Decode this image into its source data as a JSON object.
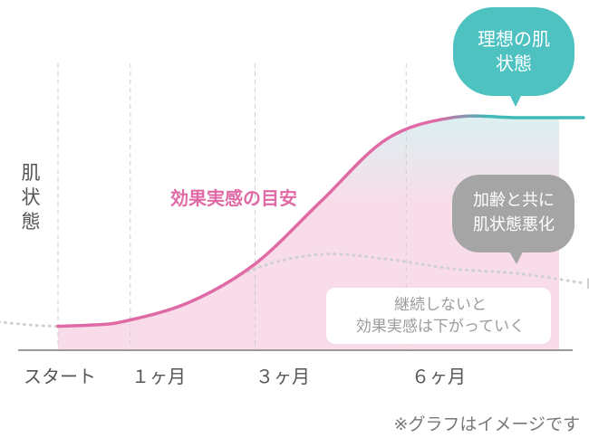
{
  "chart_data": {
    "type": "area",
    "ylabel": "肌\n状\n態",
    "categories": [
      "スタート",
      "1ヶ月",
      "3ヶ月",
      "6ヶ月"
    ],
    "x_tick_labels": [
      "スタート",
      "１ヶ月",
      "３ヶ月",
      "６ヶ月"
    ],
    "series": [
      {
        "name": "効果実感の目安",
        "x": [
          0,
          0.5,
          1,
          2,
          3,
          4,
          5,
          6,
          7,
          8
        ],
        "y": [
          10,
          10.5,
          12,
          20,
          36,
          62,
          88,
          97,
          97,
          97
        ]
      },
      {
        "name": "継続しないと効果実感は下がっていく",
        "x": [
          -1,
          0,
          1,
          2,
          3,
          4,
          5,
          6,
          7,
          8
        ],
        "y": [
          12,
          10,
          12,
          20,
          34,
          40,
          38,
          34,
          32,
          28
        ]
      }
    ],
    "callouts": [
      {
        "text": "理想の肌\n状態"
      },
      {
        "text": "加齢と共に\n肌状態悪化"
      },
      {
        "text": "継続しないと\n効果実感は下がっていく"
      }
    ],
    "footnote": "※グラフはイメージです",
    "grid": "vertical-dashed",
    "colors": {
      "main_line": "#e06aa5",
      "ideal_line": "#3fb8b8",
      "area_pink": "#f9dce9",
      "area_teal": "#dcf0f1",
      "decline_line": "#d0d0d0",
      "teal_bubble": "#4ec1c1",
      "gray_bubble": "#a5a5a5",
      "axis": "#9a9a9a",
      "text": "#555555"
    }
  }
}
